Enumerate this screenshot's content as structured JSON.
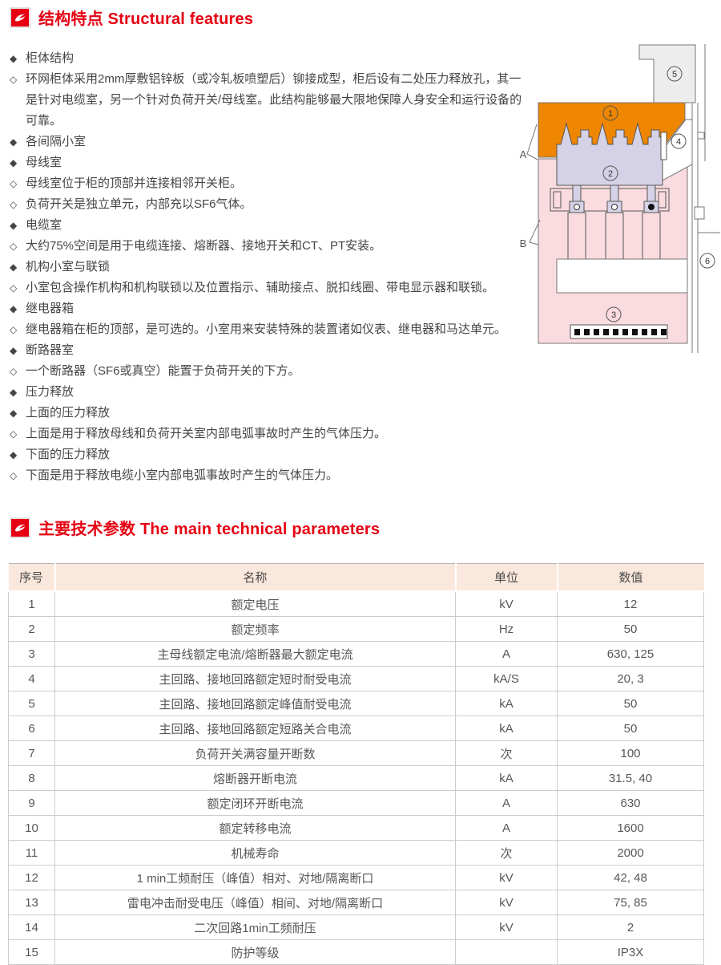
{
  "sections": {
    "structural": {
      "title": "结构特点 Structural features"
    },
    "parameters": {
      "title": "主要技术参数 The main technical parameters"
    }
  },
  "markers": {
    "main": "◆",
    "detail": "◇"
  },
  "features": [
    {
      "level": "main",
      "text": "柜体结构"
    },
    {
      "level": "detail",
      "text": "环网柜体采用2mm厚敷铝锌板（或冷轧板喷塑后）铆接成型，柜后设有二处压力释放孔，其一是针对电缆室，另一个针对负荷开关/母线室。此结构能够最大限地保障人身安全和运行设备的可靠。"
    },
    {
      "level": "main",
      "text": "各间隔小室"
    },
    {
      "level": "main",
      "text": "母线室"
    },
    {
      "level": "detail",
      "text": "母线室位于柜的顶部并连接相邻开关柜。"
    },
    {
      "level": "detail",
      "text": "负荷开关是独立单元，内部充以SF6气体。"
    },
    {
      "level": "main",
      "text": "电缆室"
    },
    {
      "level": "detail",
      "text": "大约75%空间是用于电缆连接、熔断器、接地开关和CT、PT安装。"
    },
    {
      "level": "main",
      "text": "机构小室与联锁"
    },
    {
      "level": "detail",
      "text": "小室包含操作机构和机构联锁以及位置指示、辅助接点、脱扣线圈、带电显示器和联锁。"
    },
    {
      "level": "main",
      "text": "继电器箱"
    },
    {
      "level": "detail",
      "text": "继电器箱在柜的顶部，是可选的。小室用来安装特殊的装置诸如仪表、继电器和马达单元。"
    },
    {
      "level": "main",
      "text": "断路器室"
    },
    {
      "level": "detail",
      "text": "一个断路器（SF6或真空）能置于负荷开关的下方。"
    },
    {
      "level": "main",
      "text": "压力释放"
    },
    {
      "level": "main",
      "text": "上面的压力释放"
    },
    {
      "level": "detail",
      "text": "上面是用于释放母线和负荷开关室内部电弧事故时产生的气体压力。"
    },
    {
      "level": "main",
      "text": "下面的压力释放"
    },
    {
      "level": "detail",
      "text": "下面是用于释放电缆小室内部电弧事故时产生的气体压力。"
    }
  ],
  "diagram": {
    "markers": {
      "m1": "1",
      "m2": "2",
      "m3": "3",
      "m4": "4",
      "m5": "5",
      "m6": "6"
    },
    "zones": {
      "a": "A",
      "b": "B"
    },
    "colors": {
      "busbar": "#ee8600",
      "switch_unit": "#d5d1e6",
      "cable_room": "#f9dbe0",
      "relay_box": "#ededed"
    }
  },
  "table": {
    "headers": [
      "序号",
      "名称",
      "单位",
      "数值"
    ],
    "rows": [
      [
        "1",
        "额定电压",
        "kV",
        "12"
      ],
      [
        "2",
        "额定频率",
        "Hz",
        "50"
      ],
      [
        "3",
        "主母线额定电流/熔断器最大额定电流",
        "A",
        "630, 125"
      ],
      [
        "4",
        "主回路、接地回路额定短时耐受电流",
        "kA/S",
        "20, 3"
      ],
      [
        "5",
        "主回路、接地回路额定峰值耐受电流",
        "kA",
        "50"
      ],
      [
        "6",
        "主回路、接地回路额定短路关合电流",
        "kA",
        "50"
      ],
      [
        "7",
        "负荷开关满容量开断数",
        "次",
        "100"
      ],
      [
        "8",
        "熔断器开断电流",
        "kA",
        "31.5, 40"
      ],
      [
        "9",
        "额定闭环开断电流",
        "A",
        "630"
      ],
      [
        "10",
        "额定转移电流",
        "A",
        "1600"
      ],
      [
        "11",
        "机械寿命",
        "次",
        "2000"
      ],
      [
        "12",
        "1 min工频耐压（峰值）相对、对地/隔离断口",
        "kV",
        "42, 48"
      ],
      [
        "13",
        "雷电冲击耐受电压（峰值）相间、对地/隔离断口",
        "kV",
        "75, 85"
      ],
      [
        "14",
        "二次回路1min工频耐压",
        "kV",
        "2"
      ],
      [
        "15",
        "防护等级",
        "",
        "IP3X"
      ]
    ]
  }
}
